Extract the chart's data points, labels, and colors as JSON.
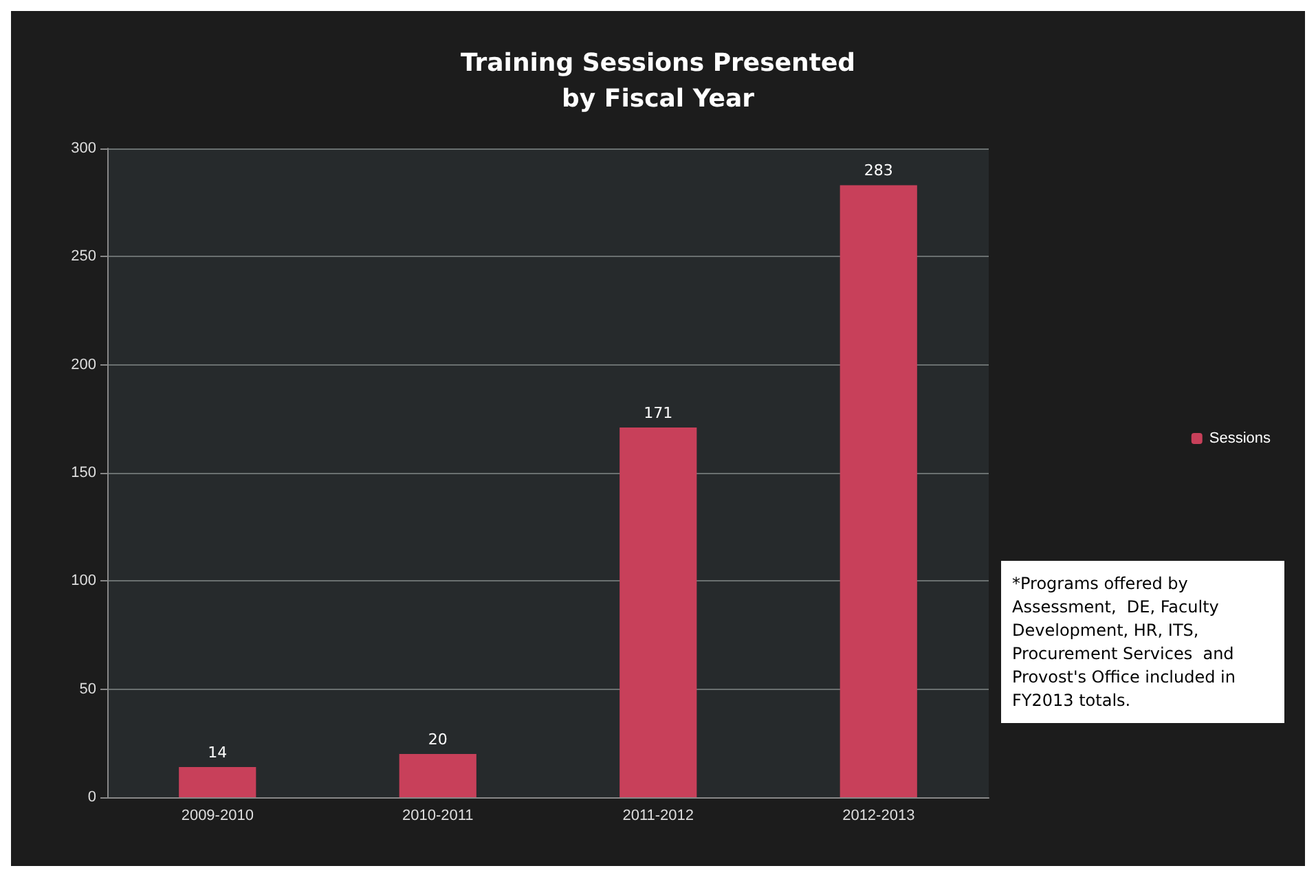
{
  "chart_data": {
    "type": "bar",
    "title": "Training Sessions Presented\nby Fiscal Year",
    "categories": [
      "2009-2010",
      "2010-2011",
      "2011-2012",
      "2012-2013"
    ],
    "series": [
      {
        "name": "Sessions",
        "color": "#c8405a",
        "values": [
          14,
          20,
          171,
          283
        ]
      }
    ],
    "ylim": [
      0,
      300
    ],
    "yticks": [
      0,
      50,
      100,
      150,
      200,
      250,
      300
    ],
    "grid": "y",
    "legend": "right",
    "data_labels": true,
    "annotations": [
      "*Programs offered by Assessment,  DE, Faculty Development, HR, ITS, Procurement Services  and Provost's Office included in FY2013 totals."
    ]
  }
}
